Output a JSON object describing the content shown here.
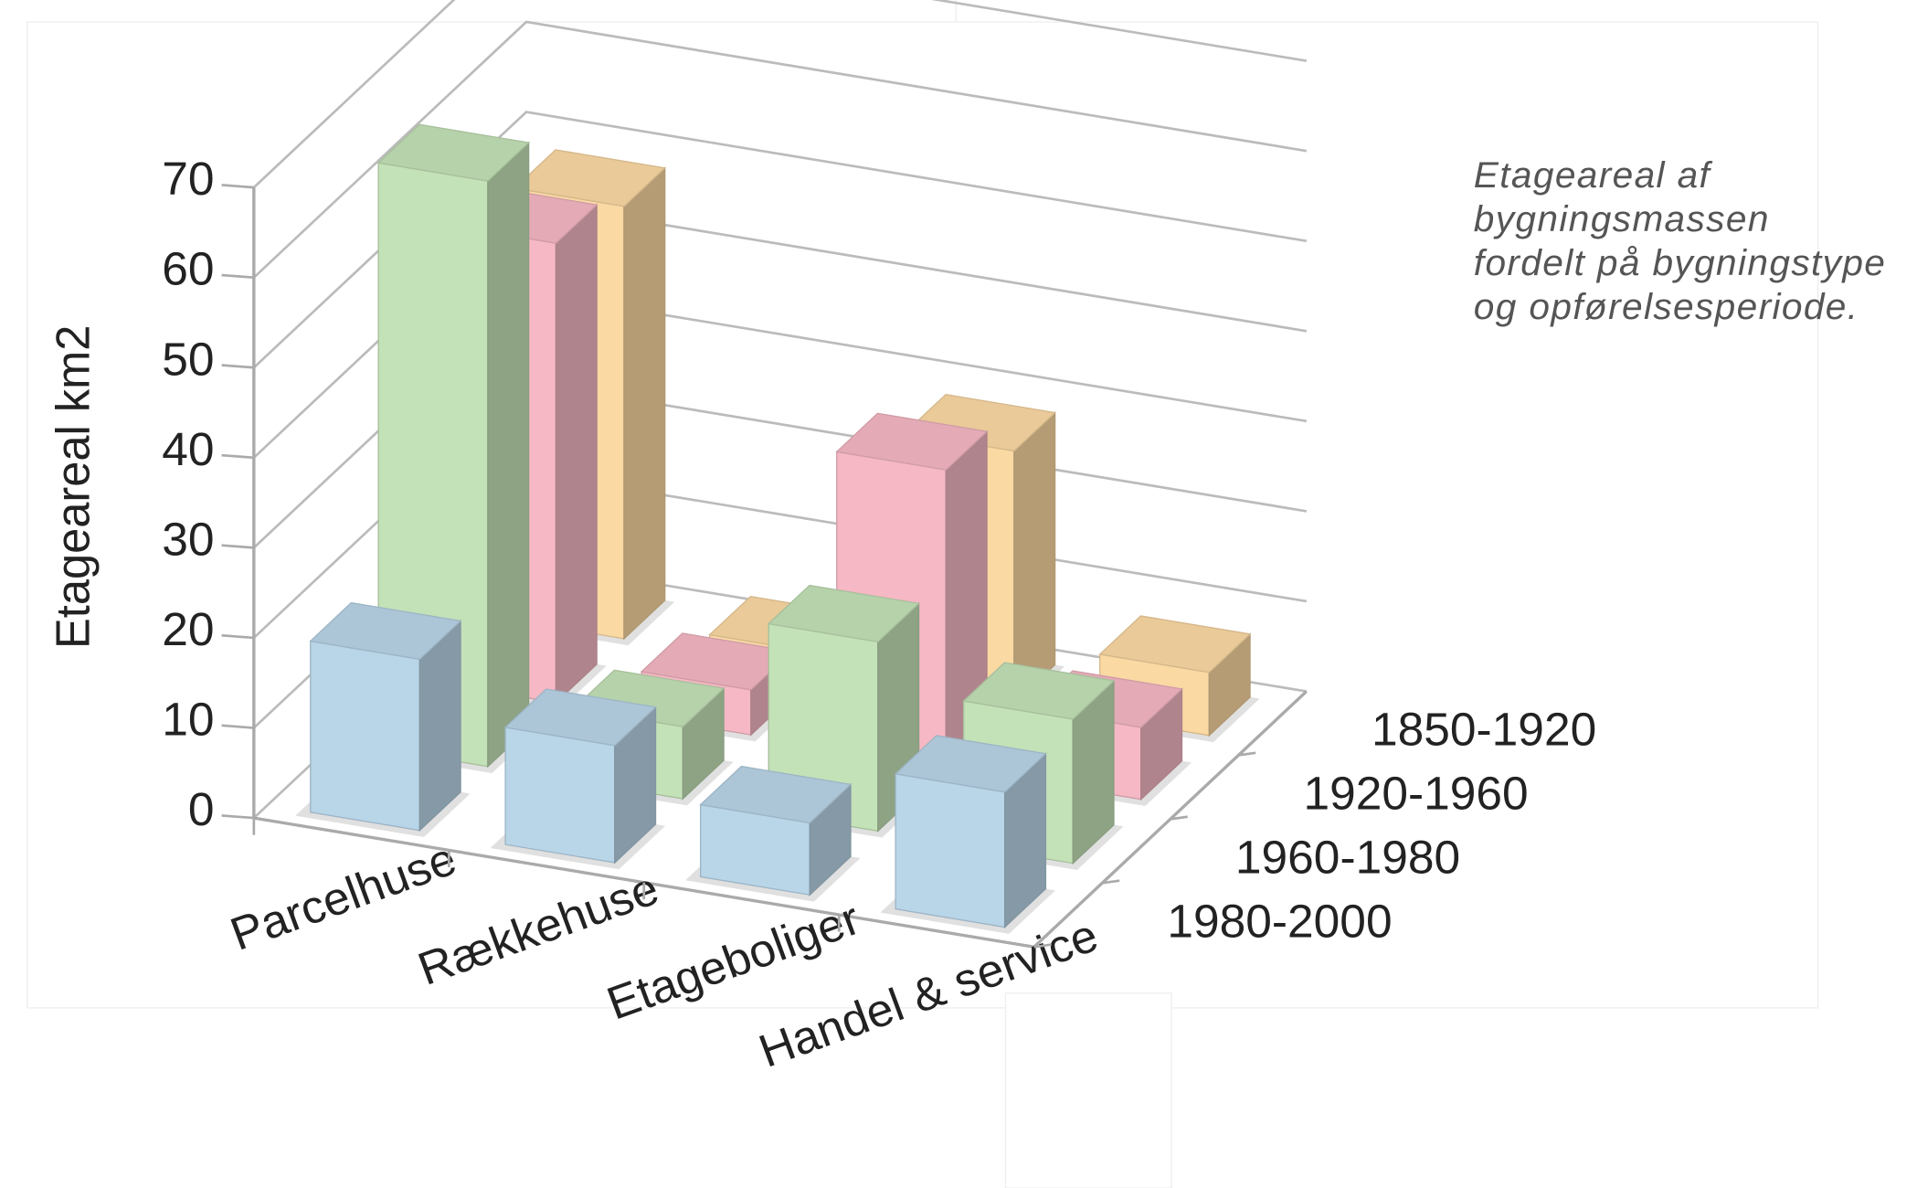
{
  "chart_data": {
    "type": "bar3d",
    "ylabel": "Etageareal km2",
    "caption": [
      "Etageareal af",
      "bygningsmassen",
      "fordelt på bygningstype",
      "og opførelsesperiode."
    ],
    "categories": [
      "Parcelhuse",
      "Rækkehuse",
      "Etageboliger",
      "Handel & service"
    ],
    "series": [
      {
        "name": "1980-2000",
        "color": "#b9d5e8",
        "values": [
          19,
          13,
          8,
          15
        ]
      },
      {
        "name": "1960-1980",
        "color": "#c4e2b8",
        "values": [
          65,
          8,
          21,
          16
        ]
      },
      {
        "name": "1920-1960",
        "color": "#f5b8c4",
        "values": [
          51,
          5,
          33,
          8
        ]
      },
      {
        "name": "1850-1920",
        "color": "#fbd9a3",
        "values": [
          48,
          2,
          28,
          7
        ]
      }
    ],
    "ylim": [
      0,
      70
    ],
    "yticks": [
      0,
      10,
      20,
      30,
      40,
      50,
      60,
      70
    ],
    "grid": true
  }
}
